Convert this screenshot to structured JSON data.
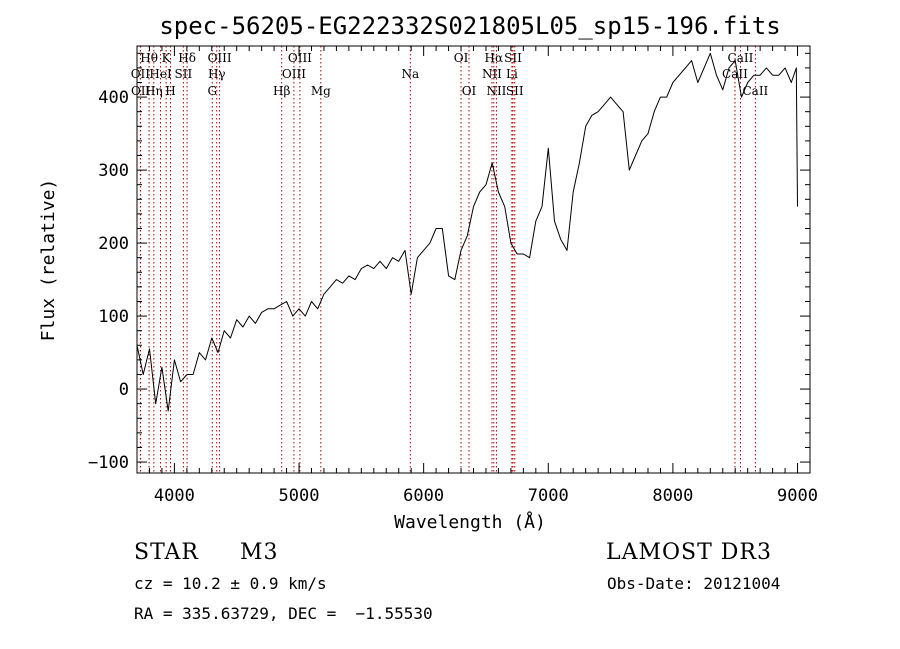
{
  "chart_data": {
    "type": "line",
    "title": "spec-56205-EG222332S021805L05_sp15-196.fits",
    "xlabel": "Wavelength (Å)",
    "ylabel": "Flux (relative)",
    "xlim": [
      3700,
      9100
    ],
    "ylim": [
      -115,
      470
    ],
    "x_ticks": [
      4000,
      5000,
      6000,
      7000,
      8000,
      9000
    ],
    "y_ticks": [
      -100,
      0,
      100,
      200,
      300,
      400
    ],
    "grid": false,
    "line_color": "#000000",
    "marker_color": "#aa0000",
    "spectral_lines": [
      {
        "label": "Hθ",
        "wavelength": 3797,
        "row": 0
      },
      {
        "label": "OII",
        "wavelength": 3727,
        "row": 1
      },
      {
        "label": "OII",
        "wavelength": 3729,
        "row": 2
      },
      {
        "label": "Hη",
        "wavelength": 3835,
        "row": 2
      },
      {
        "label": "K",
        "wavelength": 3934,
        "row": 0
      },
      {
        "label": "HeI",
        "wavelength": 3889,
        "row": 1
      },
      {
        "label": "SII",
        "wavelength": 4072,
        "row": 1
      },
      {
        "label": "H",
        "wavelength": 3969,
        "row": 2
      },
      {
        "label": "Hδ",
        "wavelength": 4102,
        "row": 0
      },
      {
        "label": "OIII",
        "wavelength": 4363,
        "row": 0
      },
      {
        "label": "Hγ",
        "wavelength": 4340,
        "row": 1
      },
      {
        "label": "G",
        "wavelength": 4304,
        "row": 2
      },
      {
        "label": "Hβ",
        "wavelength": 4861,
        "row": 2
      },
      {
        "label": "OIII",
        "wavelength": 5007,
        "row": 0
      },
      {
        "label": "OIII",
        "wavelength": 4959,
        "row": 1
      },
      {
        "label": "Mg",
        "wavelength": 5175,
        "row": 2
      },
      {
        "label": "Na",
        "wavelength": 5893,
        "row": 1
      },
      {
        "label": "OI",
        "wavelength": 6300,
        "row": 0
      },
      {
        "label": "OI",
        "wavelength": 6364,
        "row": 2
      },
      {
        "label": "Hα",
        "wavelength": 6563,
        "row": 0
      },
      {
        "label": "NII",
        "wavelength": 6548,
        "row": 1
      },
      {
        "label": "NII",
        "wavelength": 6584,
        "row": 2
      },
      {
        "label": "SII",
        "wavelength": 6717,
        "row": 0
      },
      {
        "label": "Li",
        "wavelength": 6708,
        "row": 1
      },
      {
        "label": "SII",
        "wavelength": 6731,
        "row": 2
      },
      {
        "label": "CaII",
        "wavelength": 8542,
        "row": 0
      },
      {
        "label": "CaII",
        "wavelength": 8498,
        "row": 1
      },
      {
        "label": "CaII",
        "wavelength": 8662,
        "row": 2
      }
    ],
    "series": [
      {
        "x": [
          3700,
          3750,
          3800,
          3850,
          3900,
          3950,
          4000,
          4050,
          4100,
          4150,
          4200,
          4250,
          4300,
          4350,
          4400,
          4450,
          4500,
          4550,
          4600,
          4650,
          4700,
          4750,
          4800,
          4850,
          4900,
          4950,
          5000,
          5050,
          5100,
          5150,
          5200,
          5250,
          5300,
          5350,
          5400,
          5450,
          5500,
          5550,
          5600,
          5650,
          5700,
          5750,
          5800,
          5850,
          5900,
          5950,
          6000,
          6050,
          6100,
          6150,
          6200,
          6250,
          6300,
          6350,
          6400,
          6450,
          6500,
          6550,
          6600,
          6650,
          6700,
          6750,
          6800,
          6850,
          6900,
          6950,
          7000,
          7050,
          7100,
          7150,
          7200,
          7250,
          7300,
          7350,
          7400,
          7450,
          7500,
          7550,
          7600,
          7650,
          7700,
          7750,
          7800,
          7850,
          7900,
          7950,
          8000,
          8050,
          8100,
          8150,
          8200,
          8250,
          8300,
          8350,
          8400,
          8450,
          8500,
          8550,
          8600,
          8650,
          8700,
          8750,
          8800,
          8850,
          8900,
          8950,
          8990,
          9000
        ],
        "y": [
          60,
          20,
          55,
          -20,
          30,
          -30,
          40,
          10,
          20,
          20,
          50,
          40,
          70,
          50,
          80,
          70,
          95,
          85,
          100,
          90,
          105,
          110,
          110,
          115,
          120,
          100,
          110,
          100,
          120,
          110,
          130,
          140,
          150,
          145,
          155,
          150,
          165,
          170,
          165,
          175,
          165,
          180,
          175,
          190,
          130,
          180,
          190,
          200,
          220,
          220,
          155,
          150,
          190,
          210,
          250,
          270,
          280,
          310,
          270,
          250,
          200,
          185,
          185,
          180,
          230,
          250,
          330,
          230,
          205,
          190,
          270,
          310,
          360,
          375,
          380,
          390,
          400,
          390,
          380,
          300,
          320,
          340,
          350,
          380,
          400,
          400,
          420,
          430,
          440,
          450,
          420,
          440,
          460,
          430,
          410,
          440,
          450,
          400,
          420,
          430,
          430,
          440,
          430,
          430,
          440,
          420,
          440,
          250
        ]
      }
    ]
  },
  "footer": {
    "object_type": "STAR",
    "subclass": "M3",
    "survey": "LAMOST DR3",
    "cz": "cz = 10.2 ± 0.9 km/s",
    "obs_date": "Obs-Date: 20121004",
    "coords": "RA = 335.63729, DEC =  −1.55530"
  }
}
